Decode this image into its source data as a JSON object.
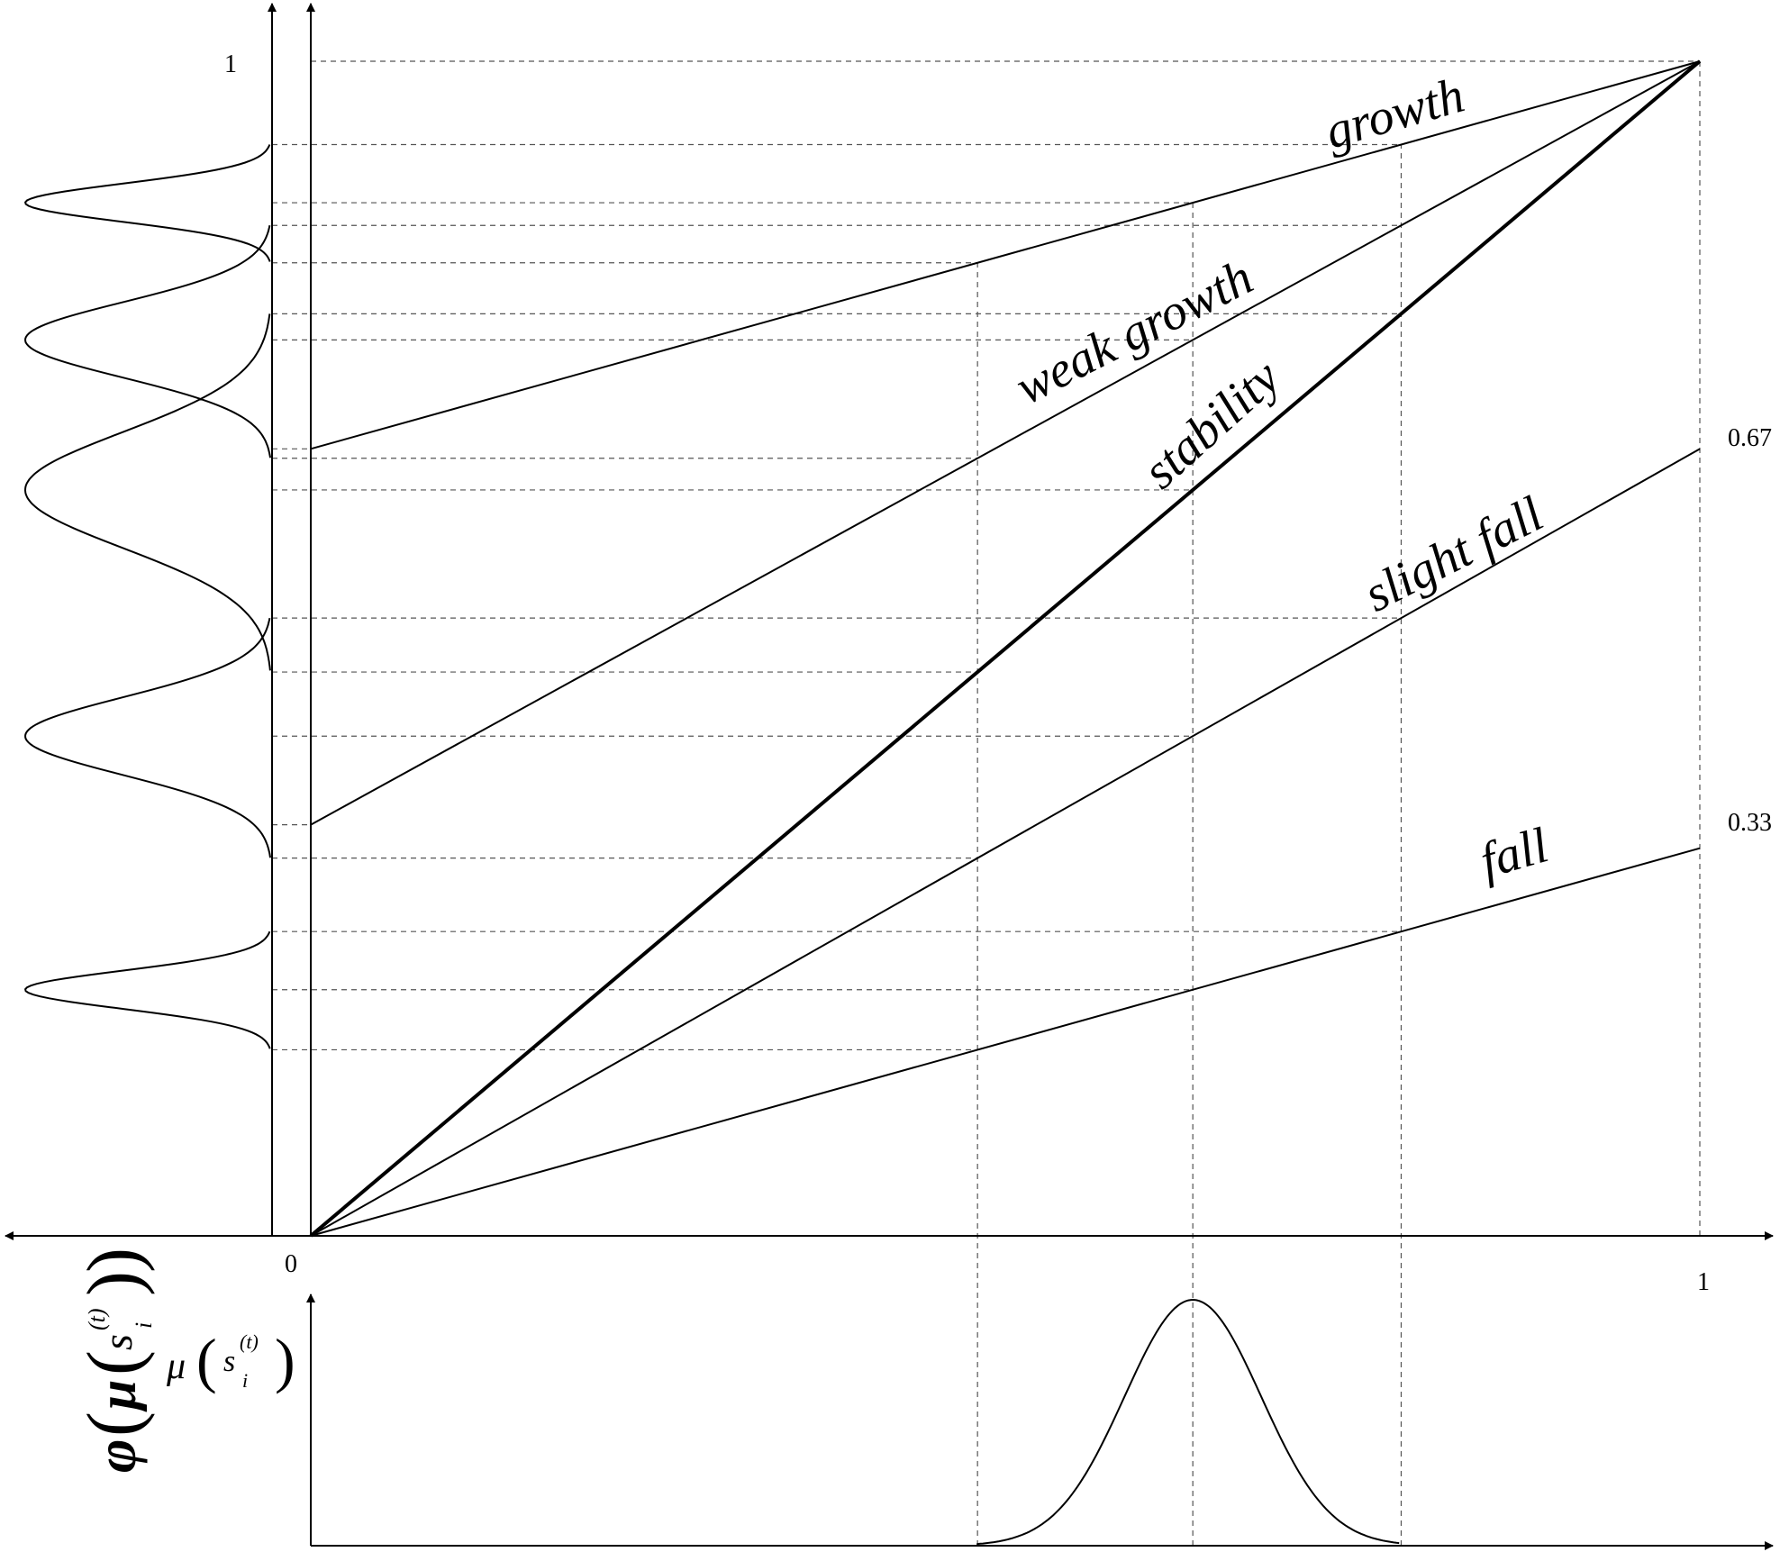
{
  "ticks": {
    "origin": "0",
    "x_one": "1",
    "y_one": "1",
    "y_067": "0.67",
    "y_033": "0.33"
  },
  "lines": [
    {
      "key": "growth",
      "label": "growth",
      "y_at_0": 0.67,
      "y_at_1": 1.0
    },
    {
      "key": "weak-growth",
      "label": "weak growth",
      "y_at_0": 0.35,
      "y_at_1": 1.0
    },
    {
      "key": "stability",
      "label": "stability",
      "y_at_0": 0.0,
      "y_at_1": 1.0
    },
    {
      "key": "slight-fall",
      "label": "slight fall",
      "y_at_0": 0.0,
      "y_at_1": 0.67
    },
    {
      "key": "fall",
      "label": "fall",
      "y_at_0": 0.0,
      "y_at_1": 0.33
    }
  ],
  "input_distribution": {
    "mean": 0.635,
    "range": [
      0.48,
      0.785
    ]
  },
  "axis_labels": {
    "phi": "φ",
    "mu": "μ",
    "s": "s",
    "sub": "i",
    "sup": "(t)"
  }
}
